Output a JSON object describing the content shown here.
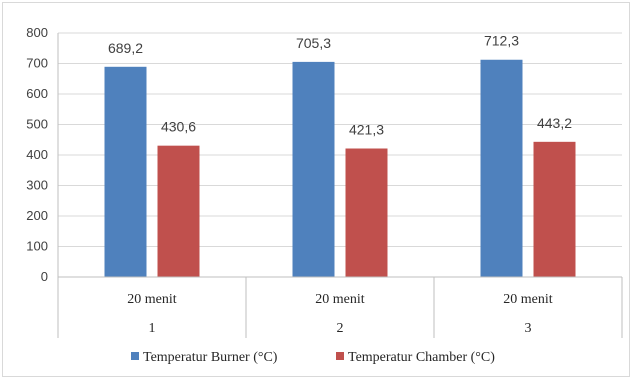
{
  "chart_data": {
    "type": "bar",
    "categories": [
      {
        "label": "20 menit",
        "group": "1"
      },
      {
        "label": "20 menit",
        "group": "2"
      },
      {
        "label": "20 menit",
        "group": "3"
      }
    ],
    "series": [
      {
        "name": "Temperatur Burner (°C)",
        "color": "#4f81bd",
        "values": [
          689.2,
          705.3,
          712.3
        ],
        "labels": [
          "689,2",
          "705,3",
          "712,3"
        ]
      },
      {
        "name": "Temperatur  Chamber (°C)",
        "color": "#c0504d",
        "values": [
          430.6,
          421.3,
          443.2
        ],
        "labels": [
          "430,6",
          "421,3",
          "443,2"
        ]
      }
    ],
    "ylim": [
      0,
      800
    ],
    "yticks": [
      0,
      100,
      200,
      300,
      400,
      500,
      600,
      700,
      800
    ],
    "grid": true,
    "legend": "bottom"
  }
}
